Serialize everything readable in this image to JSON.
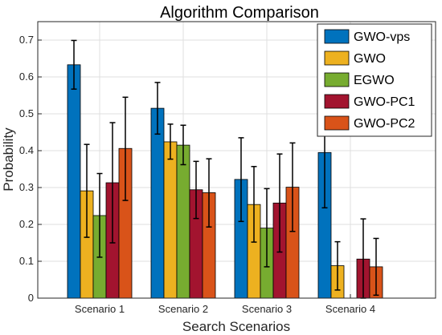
{
  "chart_data": {
    "type": "bar",
    "title": "Algorithm Comparison",
    "xlabel": "Search Scenarios",
    "ylabel": "Probability",
    "ylim": [
      0,
      0.75
    ],
    "yticks": [
      0,
      0.1,
      0.2,
      0.3,
      0.4,
      0.5,
      0.6,
      0.7
    ],
    "grid": true,
    "legend_position": "top-right",
    "categories": [
      "Scenario 1",
      "Scenario 2",
      "Scenario 3",
      "Scenario 4"
    ],
    "series": [
      {
        "name": "GWO-vps",
        "color": "#0072BD",
        "values": [
          0.633,
          0.515,
          0.322,
          0.395
        ],
        "error_low": [
          0.567,
          0.445,
          0.208,
          0.245
        ],
        "error_high": [
          0.699,
          0.585,
          0.435,
          0.547
        ]
      },
      {
        "name": "GWO",
        "color": "#EDB120",
        "values": [
          0.291,
          0.424,
          0.254,
          0.088
        ],
        "error_low": [
          0.165,
          0.377,
          0.152,
          0.022
        ],
        "error_high": [
          0.417,
          0.472,
          0.357,
          0.153
        ]
      },
      {
        "name": "EGWO",
        "color": "#77AC30",
        "values": [
          0.224,
          0.415,
          0.19,
          0.0
        ],
        "error_low": [
          0.111,
          0.362,
          0.085,
          0.0
        ],
        "error_high": [
          0.338,
          0.469,
          0.297,
          0.0
        ]
      },
      {
        "name": "GWO-PC1",
        "color": "#A2142F",
        "values": [
          0.313,
          0.294,
          0.258,
          0.106
        ],
        "error_low": [
          0.15,
          0.216,
          0.125,
          0.0
        ],
        "error_high": [
          0.476,
          0.371,
          0.391,
          0.215
        ]
      },
      {
        "name": "GWO-PC2",
        "color": "#D95319",
        "values": [
          0.406,
          0.286,
          0.301,
          0.085
        ],
        "error_low": [
          0.265,
          0.193,
          0.181,
          0.008
        ],
        "error_high": [
          0.545,
          0.378,
          0.421,
          0.162
        ]
      }
    ]
  }
}
